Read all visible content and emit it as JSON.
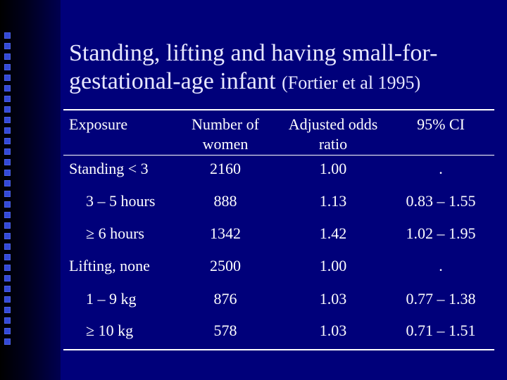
{
  "title": {
    "main": "Standing, lifting and having small-for-gestational-age infant",
    "citation": "(Fortier et al 1995)"
  },
  "table": {
    "headers": {
      "exposure": "Exposure",
      "number_line1": "Number of",
      "number_line2": "women",
      "odds_line1": "Adjusted odds",
      "odds_line2": "ratio",
      "ci": "95% CI"
    },
    "rows": [
      {
        "exposure": "Standing < 3",
        "number": "2160",
        "odds": "1.00",
        "ci": "."
      },
      {
        "exposure": "3 – 5 hours",
        "number": "888",
        "odds": "1.13",
        "ci": "0.83 – 1.55"
      },
      {
        "exposure": "≥ 6 hours",
        "number": "1342",
        "odds": "1.42",
        "ci": "1.02 – 1.95"
      },
      {
        "exposure": "Lifting, none",
        "number": "2500",
        "odds": "1.00",
        "ci": "."
      },
      {
        "exposure": "1 – 9 kg",
        "number": "876",
        "odds": "1.03",
        "ci": "0.77 – 1.38"
      },
      {
        "exposure": "≥ 10 kg",
        "number": "578",
        "odds": "1.03",
        "ci": "0.71 – 1.51"
      }
    ]
  },
  "colors": {
    "background": "#00007a",
    "text": "#ffffff"
  }
}
